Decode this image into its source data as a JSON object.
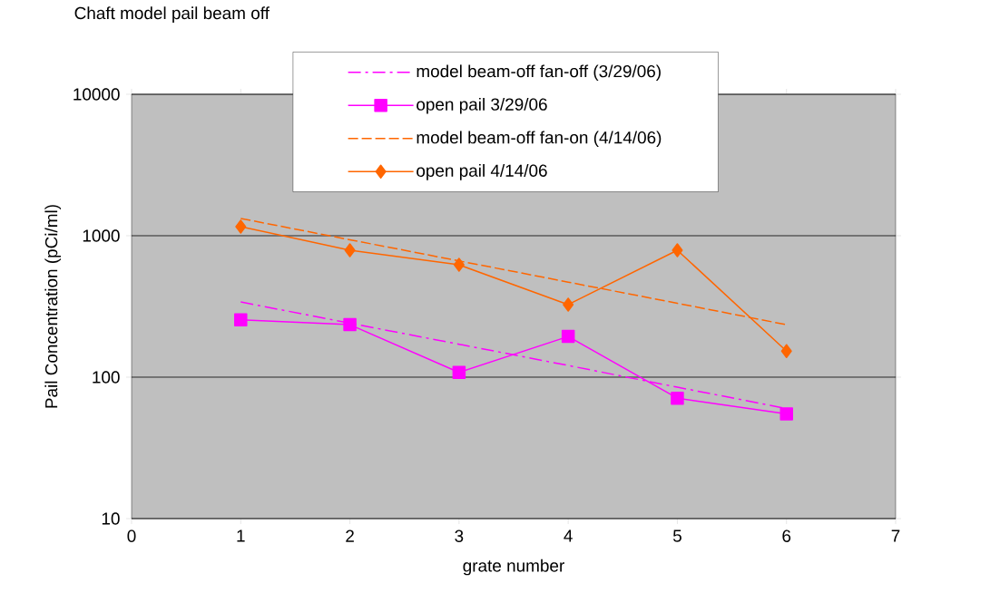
{
  "chart_data": {
    "type": "line",
    "title": "Chaft model pail beam off",
    "xlabel": "grate number",
    "ylabel": "Pail Concentration (pCi/ml)",
    "log": "y",
    "grid": "y",
    "legend": "top right",
    "xlim": [
      0,
      7
    ],
    "xticks": [
      0,
      1,
      2,
      3,
      4,
      5,
      6,
      7
    ],
    "ylim": [
      10,
      10000
    ],
    "yticks": [
      10,
      100,
      1000,
      10000
    ],
    "x": [
      1,
      2,
      3,
      4,
      5,
      6
    ],
    "series": [
      {
        "name": "model beam-off fan-off (3/29/06)",
        "color": "#ff00ff",
        "values": [
          340,
          241,
          171,
          121,
          85,
          60
        ],
        "marker": "none",
        "line_style": "dashdot"
      },
      {
        "name": "open pail 3/29/06",
        "color": "#ff00ff",
        "values": [
          254,
          235,
          108,
          194,
          71,
          55
        ],
        "marker": "square",
        "line_style": "solid"
      },
      {
        "name": "model beam-off fan-on (4/14/06)",
        "color": "#ff6600",
        "values": [
          1325,
          937,
          664,
          470,
          333,
          235
        ],
        "marker": "none",
        "line_style": "dashed"
      },
      {
        "name": "open pail 4/14/06",
        "color": "#ff6600",
        "values": [
          1160,
          790,
          623,
          326,
          790,
          153
        ],
        "marker": "diamond",
        "line_style": "solid"
      }
    ]
  }
}
